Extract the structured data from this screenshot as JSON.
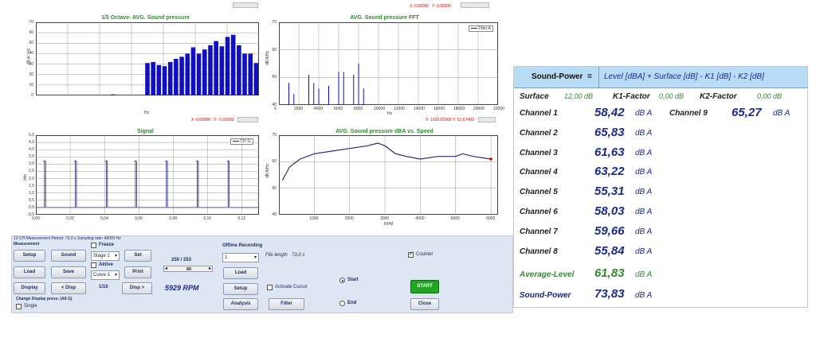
{
  "colors": {
    "bar": "#1010c0",
    "line": "#2a2a7a",
    "title_green": "#2e8b2e",
    "value_blue": "#1a2a8a",
    "value_green": "#2e8b2e",
    "header_bg": "#b8dcf5"
  },
  "charts": {
    "octave": {
      "title": "1/3 Octave- AVG. Sound pressure",
      "ylabel": "dB A / Hz",
      "xlabel": "Hz",
      "yticks": [
        "70",
        "60",
        "50",
        "40",
        "30",
        "20",
        "10",
        "0"
      ],
      "readout_x": "X: 0,00000",
      "readout_y": "Y: -0,00000"
    },
    "fft": {
      "title": "AVG. Sound pressure FFT",
      "ylabel": "dB A/Hz",
      "xlabel": "Hz",
      "legend": "Filter A",
      "yticks": [
        "70",
        "60",
        "50",
        "40"
      ],
      "xticks": [
        "0",
        "2000",
        "4000",
        "6000",
        "8000",
        "10000",
        "12000",
        "14000",
        "16000",
        "18000",
        "20000",
        "22000"
      ],
      "readout_top_x": "X: 0,00000",
      "readout_top_y": "Y: 0,00000",
      "readout_x": "X: 1025,97000",
      "readout_y": "Y: 51,67400"
    },
    "signal": {
      "title": "Signal",
      "ylabel": "bits",
      "legend": "CH 11",
      "yticks": [
        "5,0",
        "4,5",
        "4,0",
        "3,5",
        "3,0",
        "2,5",
        "2,0",
        "1,5",
        "1,0",
        "0,5",
        "0,0",
        "-0,5"
      ],
      "xticks": [
        "0,00",
        "0,02",
        "0,04",
        "0,06",
        "0,08",
        "0,10",
        "0,12"
      ]
    },
    "speed": {
      "title": "AVG. Sound pressure dBA vs. Speed",
      "ylabel": "dB A/Hz",
      "xlabel": "RPM",
      "yticks": [
        "70",
        "60",
        "50",
        "40"
      ],
      "xticks": [
        "1000",
        "2000",
        "3000",
        "4000",
        "5000",
        "6000"
      ]
    }
  },
  "chart_data": [
    {
      "type": "bar",
      "title": "1/3 Octave- AVG. Sound pressure",
      "xlabel": "Hz",
      "ylabel": "dB A / Hz",
      "ylim": [
        0,
        70
      ],
      "values": [
        0,
        0,
        0,
        0,
        0,
        0,
        0,
        0,
        0,
        0,
        0,
        0,
        0,
        1,
        0,
        0,
        0,
        0,
        0,
        31,
        32,
        29,
        28,
        32,
        35,
        37,
        40,
        46,
        40,
        44,
        48,
        52,
        47,
        56,
        58,
        48,
        40,
        40,
        31
      ]
    },
    {
      "type": "bar",
      "title": "AVG. Sound pressure FFT",
      "xlabel": "Hz",
      "ylabel": "dB A/Hz",
      "xlim": [
        0,
        22000
      ],
      "ylim": [
        40,
        70
      ],
      "x": [
        1000,
        1500,
        3000,
        3500,
        4000,
        5000,
        6000,
        6500,
        7500,
        8000,
        8500
      ],
      "values": [
        48,
        44,
        51,
        48,
        46,
        47,
        52,
        52,
        51,
        55,
        46
      ]
    },
    {
      "type": "line",
      "title": "Signal",
      "ylabel": "bits",
      "xlim": [
        0,
        0.13
      ],
      "ylim": [
        -0.5,
        5.0
      ],
      "legend": [
        "CH 11"
      ],
      "pulses_x": [
        0.005,
        0.023,
        0.041,
        0.058,
        0.076,
        0.094,
        0.112
      ],
      "pulse_high": 3.2,
      "pulse_low": 0.0
    },
    {
      "type": "line",
      "title": "AVG. Sound pressure dBA vs. Speed",
      "xlabel": "RPM",
      "ylabel": "dB A/Hz",
      "xlim": [
        0,
        6200
      ],
      "ylim": [
        40,
        70
      ],
      "x": [
        100,
        300,
        600,
        1000,
        1500,
        2000,
        2500,
        2800,
        3000,
        3300,
        3600,
        4000,
        4500,
        5000,
        5200,
        5500,
        6000
      ],
      "values": [
        53,
        58,
        61,
        63,
        64,
        65,
        66,
        67,
        66,
        63,
        62,
        61,
        62,
        62,
        63,
        62,
        61
      ]
    }
  ],
  "controls": {
    "status_line": "12 CH Measurement Period: 73,0 s Sampling rate: 48000 Hz",
    "section_label": "Measurement",
    "setup": "Setup",
    "sound": "Sound",
    "load": "Load",
    "save": "Save",
    "display": "Display",
    "prev_disp": "< Disp",
    "next_disp": "Disp >",
    "change_display": "Change Display press: (Alt G)",
    "single": "Single",
    "freeze": "Freeze",
    "stage_select": "Stage 1",
    "set": "Set",
    "active": "Aktive",
    "curve_select": "Curve 1",
    "print": "Print",
    "counter_fraction": "1/10",
    "range_value": "250 / 253",
    "rpm_value": "5929 RPM"
  },
  "offline": {
    "title": "Offline Recording",
    "file_select": "1",
    "file_length_label": "File length",
    "file_length_value": "73,0 s",
    "load": "Load",
    "setup": "Setup",
    "analysis": "Analysis",
    "activate_cursor": "Activate Cursor",
    "filter": "Filter",
    "start": "Start",
    "end": "End",
    "counter": "Counter",
    "start_btn": "START",
    "close": "Close"
  },
  "sound_power": {
    "header_label": "Sound-Power",
    "equals": "=",
    "formula": "Level [dBA] + Surface [dB] - K1 [dB] - K2 [dB]",
    "surface_label": "Surface",
    "surface_value": "12,00 dB",
    "k1_label": "K1-Factor",
    "k1_value": "0,00 dB",
    "k2_label": "K2-Factor",
    "k2_value": "0,00 dB",
    "unit": "dB A",
    "channels": [
      {
        "label": "Channel 1",
        "value": "58,42"
      },
      {
        "label": "Channel 2",
        "value": "65,83"
      },
      {
        "label": "Channel 3",
        "value": "61,63"
      },
      {
        "label": "Channel 4",
        "value": "63,22"
      },
      {
        "label": "Channel 5",
        "value": "55,31"
      },
      {
        "label": "Channel 6",
        "value": "58,03"
      },
      {
        "label": "Channel 7",
        "value": "59,66"
      },
      {
        "label": "Channel 8",
        "value": "55,84"
      }
    ],
    "channel9": {
      "label": "Channel 9",
      "value": "65,27"
    },
    "average_label": "Average-Level",
    "average_value": "61,83",
    "power_label": "Sound-Power",
    "power_value": "73,83"
  }
}
